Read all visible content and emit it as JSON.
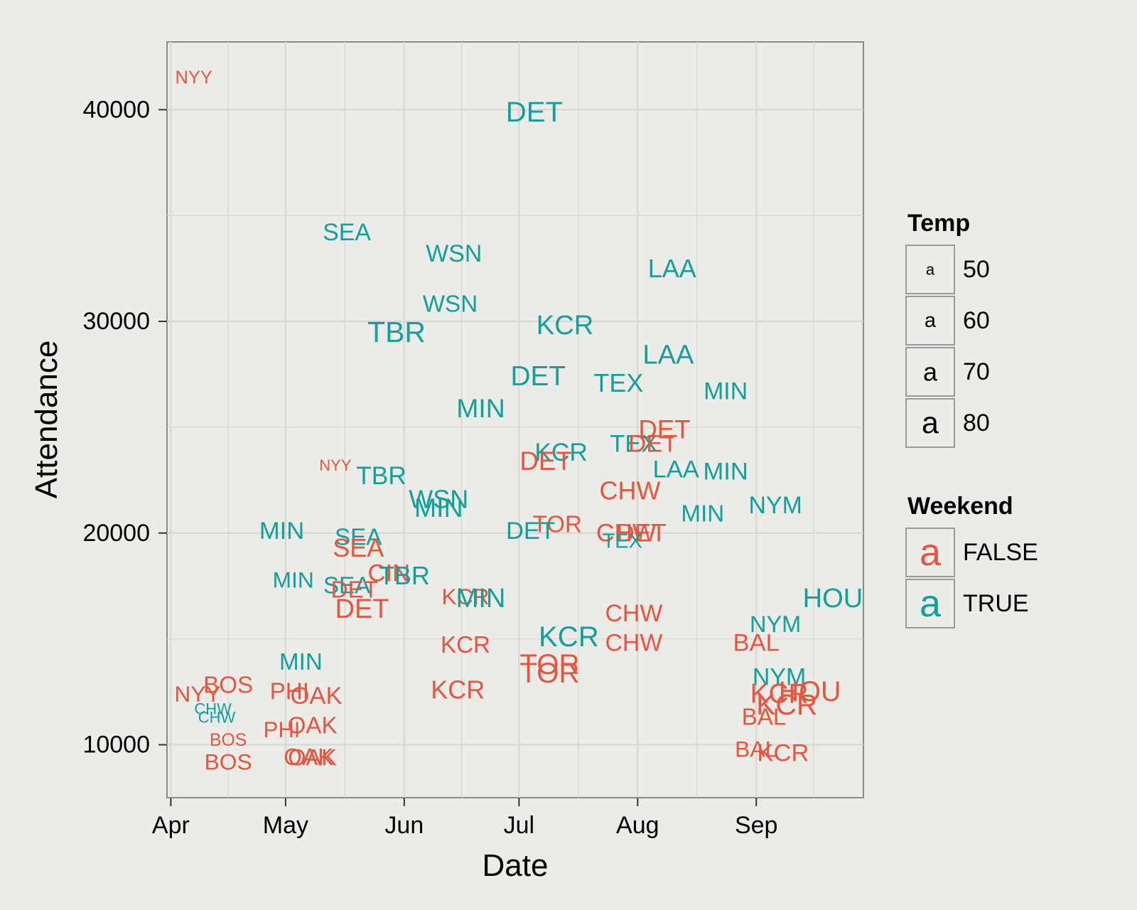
{
  "chart_data": {
    "type": "scatter",
    "marker": "text-label",
    "xlabel": "Date",
    "ylabel": "Attendance",
    "xlim": [
      "2012-03-31",
      "2012-09-29"
    ],
    "ylim": [
      7500,
      43200
    ],
    "x_ticks": [
      {
        "date": "2012-04-01",
        "label": "Apr"
      },
      {
        "date": "2012-05-01",
        "label": "May"
      },
      {
        "date": "2012-06-01",
        "label": "Jun"
      },
      {
        "date": "2012-07-01",
        "label": "Jul"
      },
      {
        "date": "2012-08-01",
        "label": "Aug"
      },
      {
        "date": "2012-09-01",
        "label": "Sep"
      }
    ],
    "y_ticks": [
      10000,
      20000,
      30000,
      40000
    ],
    "grid": true,
    "legend_position": "right",
    "legends": [
      {
        "title": "Temp",
        "kind": "size",
        "entries": [
          {
            "glyph": "a",
            "label": "50",
            "value": 50
          },
          {
            "glyph": "a",
            "label": "60",
            "value": 60
          },
          {
            "glyph": "a",
            "label": "70",
            "value": 70
          },
          {
            "glyph": "a",
            "label": "80",
            "value": 80
          }
        ]
      },
      {
        "title": "Weekend",
        "kind": "color",
        "entries": [
          {
            "glyph": "a",
            "label": "FALSE",
            "color": "#e8553f"
          },
          {
            "glyph": "a",
            "label": "TRUE",
            "color": "#12a09b"
          }
        ]
      }
    ],
    "colors": {
      "FALSE": "#e8553f",
      "TRUE": "#12a09b"
    },
    "points": [
      {
        "label": "NYY",
        "date": "2012-04-07",
        "attendance": 41500,
        "temp": 55,
        "weekend": false
      },
      {
        "label": "DET",
        "date": "2012-07-05",
        "attendance": 39900,
        "temp": 76,
        "weekend": true
      },
      {
        "label": "SEA",
        "date": "2012-05-17",
        "attendance": 34200,
        "temp": 67,
        "weekend": true
      },
      {
        "label": "WSN",
        "date": "2012-06-14",
        "attendance": 33200,
        "temp": 67,
        "weekend": true
      },
      {
        "label": "WSN",
        "date": "2012-06-13",
        "attendance": 30800,
        "temp": 66,
        "weekend": true
      },
      {
        "label": "LAA",
        "date": "2012-08-10",
        "attendance": 32500,
        "temp": 70,
        "weekend": true
      },
      {
        "label": "TBR",
        "date": "2012-05-30",
        "attendance": 29500,
        "temp": 77,
        "weekend": true
      },
      {
        "label": "KCR",
        "date": "2012-07-13",
        "attendance": 29800,
        "temp": 73,
        "weekend": true
      },
      {
        "label": "DET",
        "date": "2012-07-06",
        "attendance": 27400,
        "temp": 74,
        "weekend": true
      },
      {
        "label": "LAA",
        "date": "2012-08-09",
        "attendance": 28400,
        "temp": 73,
        "weekend": true
      },
      {
        "label": "TEX",
        "date": "2012-07-27",
        "attendance": 27100,
        "temp": 70,
        "weekend": true
      },
      {
        "label": "MIN",
        "date": "2012-08-24",
        "attendance": 26700,
        "temp": 67,
        "weekend": true
      },
      {
        "label": "MIN",
        "date": "2012-06-21",
        "attendance": 25900,
        "temp": 72,
        "weekend": true
      },
      {
        "label": "DET",
        "date": "2012-08-08",
        "attendance": 24900,
        "temp": 71,
        "weekend": false
      },
      {
        "label": "KCR",
        "date": "2012-07-12",
        "attendance": 23800,
        "temp": 69,
        "weekend": true
      },
      {
        "label": "TEX",
        "date": "2012-07-31",
        "attendance": 24200,
        "temp": 68,
        "weekend": true
      },
      {
        "label": "DET",
        "date": "2012-08-05",
        "attendance": 24200,
        "temp": 68,
        "weekend": false
      },
      {
        "label": "DET",
        "date": "2012-07-08",
        "attendance": 23400,
        "temp": 71,
        "weekend": false
      },
      {
        "label": "LAA",
        "date": "2012-08-11",
        "attendance": 23000,
        "temp": 68,
        "weekend": true
      },
      {
        "label": "MIN",
        "date": "2012-08-24",
        "attendance": 22900,
        "temp": 68,
        "weekend": true
      },
      {
        "label": "NYY",
        "date": "2012-05-14",
        "attendance": 23200,
        "temp": 50,
        "weekend": false
      },
      {
        "label": "TBR",
        "date": "2012-05-26",
        "attendance": 22700,
        "temp": 69,
        "weekend": true
      },
      {
        "label": "CHW",
        "date": "2012-07-30",
        "attendance": 22000,
        "temp": 70,
        "weekend": false
      },
      {
        "label": "WSN",
        "date": "2012-06-10",
        "attendance": 21600,
        "temp": 70,
        "weekend": true
      },
      {
        "label": "MIN",
        "date": "2012-06-10",
        "attendance": 21200,
        "temp": 72,
        "weekend": true
      },
      {
        "label": "NYM",
        "date": "2012-09-06",
        "attendance": 21300,
        "temp": 67,
        "weekend": true
      },
      {
        "label": "MIN",
        "date": "2012-08-18",
        "attendance": 20900,
        "temp": 66,
        "weekend": true
      },
      {
        "label": "TOR",
        "date": "2012-07-11",
        "attendance": 20400,
        "temp": 66,
        "weekend": false
      },
      {
        "label": "DET",
        "date": "2012-07-04",
        "attendance": 20100,
        "temp": 68,
        "weekend": true
      },
      {
        "label": "CHW",
        "date": "2012-07-29",
        "attendance": 20000,
        "temp": 69,
        "weekend": false
      },
      {
        "label": "DET",
        "date": "2012-08-02",
        "attendance": 20000,
        "temp": 69,
        "weekend": false
      },
      {
        "label": "TEX",
        "date": "2012-07-28",
        "attendance": 19600,
        "temp": 60,
        "weekend": true
      },
      {
        "label": "MIN",
        "date": "2012-04-30",
        "attendance": 20100,
        "temp": 68,
        "weekend": true
      },
      {
        "label": "SEA",
        "date": "2012-05-20",
        "attendance": 19800,
        "temp": 66,
        "weekend": true
      },
      {
        "label": "SEA",
        "date": "2012-05-20",
        "attendance": 19300,
        "temp": 70,
        "weekend": false
      },
      {
        "label": "CIN",
        "date": "2012-05-28",
        "attendance": 18100,
        "temp": 68,
        "weekend": false
      },
      {
        "label": "TBR",
        "date": "2012-06-01",
        "attendance": 18000,
        "temp": 70,
        "weekend": true
      },
      {
        "label": "MIN",
        "date": "2012-05-03",
        "attendance": 17800,
        "temp": 64,
        "weekend": true
      },
      {
        "label": "SEA",
        "date": "2012-05-17",
        "attendance": 17500,
        "temp": 66,
        "weekend": true
      },
      {
        "label": "DET",
        "date": "2012-05-19",
        "attendance": 17300,
        "temp": 66,
        "weekend": false
      },
      {
        "label": "KCR",
        "date": "2012-06-17",
        "attendance": 17000,
        "temp": 64,
        "weekend": false
      },
      {
        "label": "MIN",
        "date": "2012-06-21",
        "attendance": 16900,
        "temp": 73,
        "weekend": true
      },
      {
        "label": "DET",
        "date": "2012-05-21",
        "attendance": 16400,
        "temp": 73,
        "weekend": false
      },
      {
        "label": "HOU",
        "date": "2012-09-21",
        "attendance": 16900,
        "temp": 73,
        "weekend": true
      },
      {
        "label": "CHW",
        "date": "2012-07-31",
        "attendance": 16200,
        "temp": 67,
        "weekend": false
      },
      {
        "label": "NYM",
        "date": "2012-09-06",
        "attendance": 15700,
        "temp": 65,
        "weekend": true
      },
      {
        "label": "KCR",
        "date": "2012-07-14",
        "attendance": 15100,
        "temp": 76,
        "weekend": true
      },
      {
        "label": "CHW",
        "date": "2012-07-31",
        "attendance": 14800,
        "temp": 67,
        "weekend": false
      },
      {
        "label": "BAL",
        "date": "2012-09-01",
        "attendance": 14800,
        "temp": 68,
        "weekend": false
      },
      {
        "label": "KCR",
        "date": "2012-06-17",
        "attendance": 14700,
        "temp": 66,
        "weekend": false
      },
      {
        "label": "TOR",
        "date": "2012-07-09",
        "attendance": 13800,
        "temp": 76,
        "weekend": false
      },
      {
        "label": "TOR",
        "date": "2012-07-09",
        "attendance": 13400,
        "temp": 76,
        "weekend": false
      },
      {
        "label": "MIN",
        "date": "2012-05-05",
        "attendance": 13900,
        "temp": 66,
        "weekend": true
      },
      {
        "label": "NYM",
        "date": "2012-09-07",
        "attendance": 13200,
        "temp": 67,
        "weekend": true
      },
      {
        "label": "BOS",
        "date": "2012-04-16",
        "attendance": 12800,
        "temp": 66,
        "weekend": false
      },
      {
        "label": "PHI",
        "date": "2012-05-02",
        "attendance": 12500,
        "temp": 66,
        "weekend": false
      },
      {
        "label": "NYY",
        "date": "2012-04-08",
        "attendance": 12400,
        "temp": 64,
        "weekend": false
      },
      {
        "label": "OAK",
        "date": "2012-05-09",
        "attendance": 12300,
        "temp": 68,
        "weekend": false
      },
      {
        "label": "KCR",
        "date": "2012-06-15",
        "attendance": 12600,
        "temp": 70,
        "weekend": false
      },
      {
        "label": "KCR",
        "date": "2012-09-07",
        "attendance": 12400,
        "temp": 74,
        "weekend": false
      },
      {
        "label": "HOU",
        "date": "2012-09-15",
        "attendance": 12500,
        "temp": 75,
        "weekend": false
      },
      {
        "label": "KCR",
        "date": "2012-09-09",
        "attendance": 11900,
        "temp": 77,
        "weekend": false
      },
      {
        "label": "CHW",
        "date": "2012-04-12",
        "attendance": 11700,
        "temp": 50,
        "weekend": true
      },
      {
        "label": "CHW",
        "date": "2012-04-13",
        "attendance": 11300,
        "temp": 50,
        "weekend": true
      },
      {
        "label": "BAL",
        "date": "2012-09-03",
        "attendance": 11300,
        "temp": 66,
        "weekend": false
      },
      {
        "label": "OAK",
        "date": "2012-05-08",
        "attendance": 10900,
        "temp": 66,
        "weekend": false
      },
      {
        "label": "PHI",
        "date": "2012-04-30",
        "attendance": 10700,
        "temp": 63,
        "weekend": false
      },
      {
        "label": "BOS",
        "date": "2012-04-16",
        "attendance": 10200,
        "temp": 54,
        "weekend": false
      },
      {
        "label": "BAL",
        "date": "2012-09-01",
        "attendance": 9800,
        "temp": 64,
        "weekend": false
      },
      {
        "label": "KCR",
        "date": "2012-09-08",
        "attendance": 9600,
        "temp": 68,
        "weekend": false
      },
      {
        "label": "BOS",
        "date": "2012-04-16",
        "attendance": 9200,
        "temp": 64,
        "weekend": false
      },
      {
        "label": "OAK",
        "date": "2012-05-07",
        "attendance": 9400,
        "temp": 66,
        "weekend": false
      },
      {
        "label": "OAK",
        "date": "2012-05-08",
        "attendance": 9400,
        "temp": 65,
        "weekend": false
      }
    ]
  }
}
